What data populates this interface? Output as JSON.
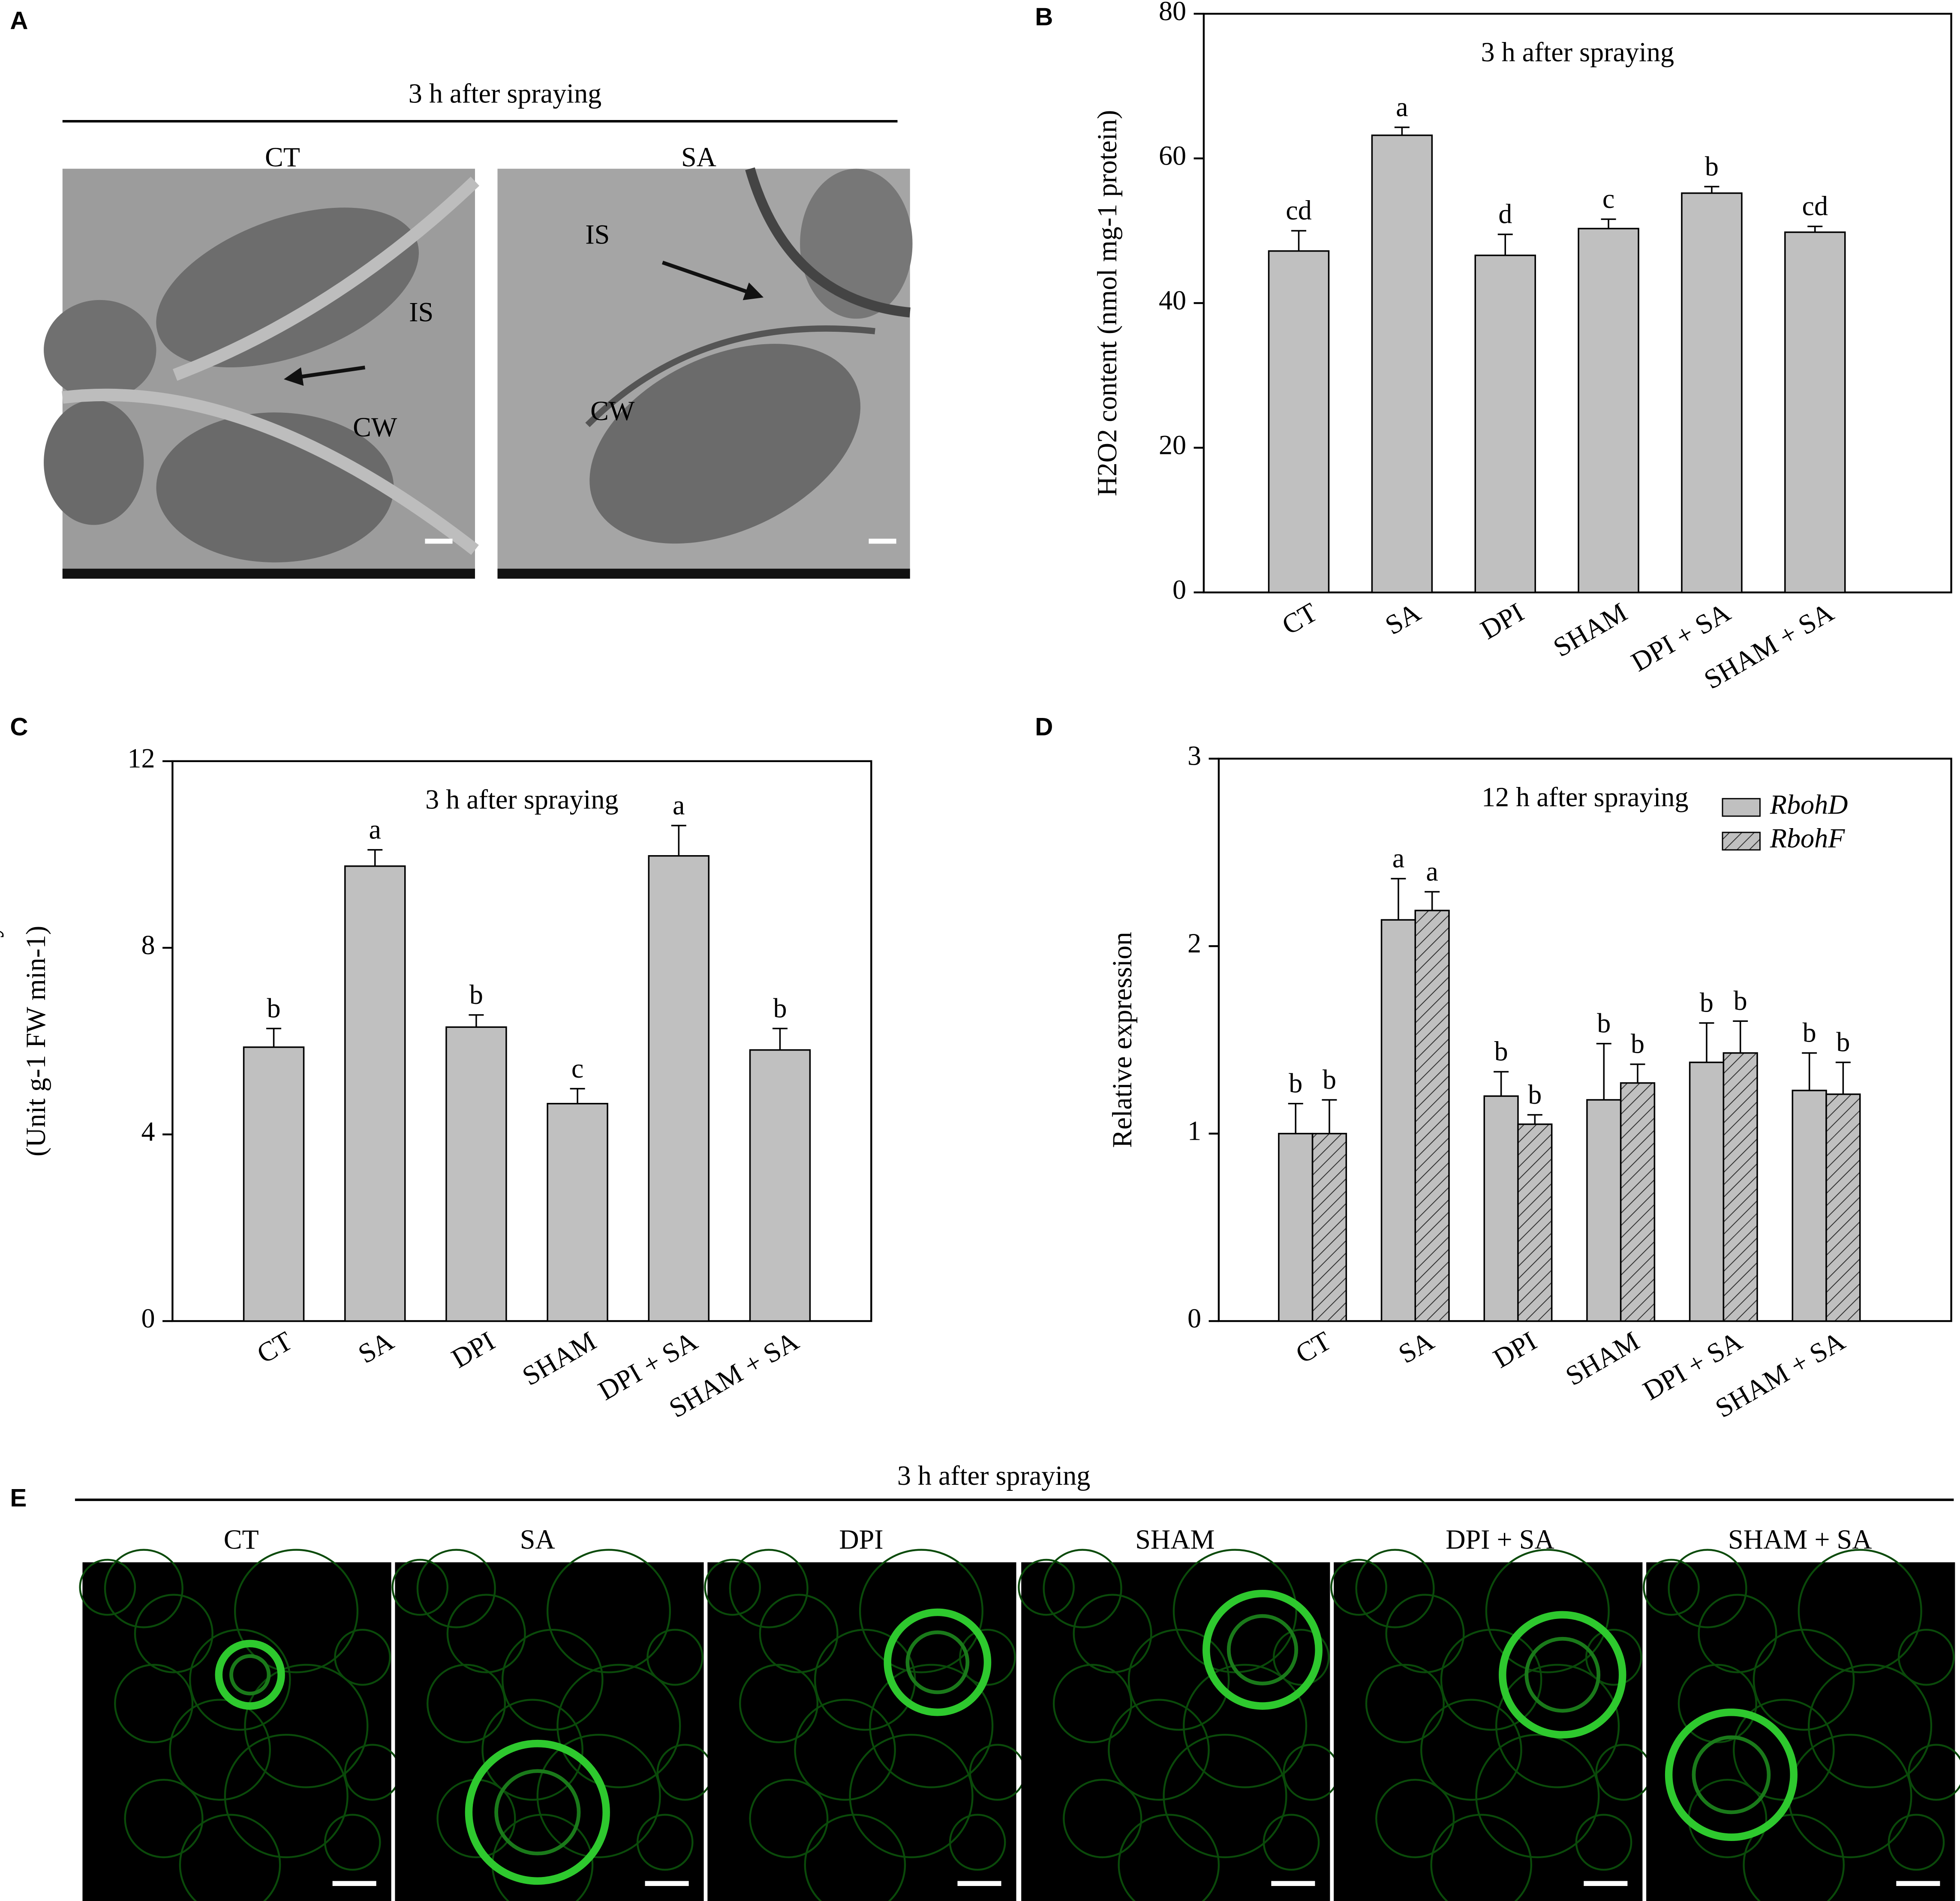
{
  "panel_labels": [
    "A",
    "B",
    "C",
    "D",
    "E"
  ],
  "panel_a": {
    "title": "3 h after spraying",
    "images": [
      {
        "label": "CT",
        "annotations": [
          "IS",
          "CW"
        ]
      },
      {
        "label": "SA",
        "annotations": [
          "IS",
          "CW"
        ]
      }
    ]
  },
  "chart_data": [
    {
      "type": "bar",
      "title": "3 h after spraying",
      "ylabel": [
        "H2O2 content (nmol mg-1 protein)"
      ],
      "categories": [
        "CT",
        "SA",
        "DPI",
        "SHAM",
        "DPI + SA",
        "SHAM + SA"
      ],
      "values": [
        47.2,
        63.2,
        46.6,
        50.3,
        55.2,
        49.8
      ],
      "errors": [
        2.8,
        1.1,
        2.9,
        1.3,
        0.9,
        0.8
      ],
      "letters": [
        "cd",
        "a",
        "d",
        "c",
        "b",
        "cd"
      ],
      "color": "#c0c0c0",
      "ylim": [
        0,
        80
      ],
      "yticks": [
        0,
        20,
        40,
        60,
        80
      ]
    },
    {
      "type": "bar",
      "title": "3 h after spraying",
      "ylabel": [
        "Cell wall Prx activity",
        "(Unit  g-1 FW min-1)"
      ],
      "categories": [
        "CT",
        "SA",
        "DPI",
        "SHAM",
        "DPI + SA",
        "SHAM + SA"
      ],
      "values": [
        5.87,
        9.75,
        6.3,
        4.66,
        9.97,
        5.81
      ],
      "errors": [
        0.4,
        0.35,
        0.26,
        0.32,
        0.65,
        0.46
      ],
      "letters": [
        "b",
        "a",
        "b",
        "c",
        "a",
        "b"
      ],
      "color": "#c0c0c0",
      "ylim": [
        0,
        12
      ],
      "yticks": [
        0,
        4,
        8,
        12
      ]
    },
    {
      "type": "grouped_bar",
      "title": "12 h after spraying",
      "ylabel": [
        "Relative expression"
      ],
      "categories": [
        "CT",
        "SA",
        "DPI",
        "SHAM",
        "DPI + SA",
        "SHAM + SA"
      ],
      "series": [
        {
          "name": "RbohD",
          "color": "#c0c0c0",
          "pattern": "solid",
          "values": [
            1.0,
            2.14,
            1.2,
            1.18,
            1.38,
            1.23
          ],
          "errors": [
            0.16,
            0.22,
            0.13,
            0.3,
            0.21,
            0.2
          ],
          "letters": [
            "b",
            "a",
            "b",
            "b",
            "b",
            "b"
          ]
        },
        {
          "name": "RbohF",
          "color": "#c0c0c0",
          "pattern": "hatch",
          "values": [
            1.0,
            2.19,
            1.05,
            1.27,
            1.43,
            1.21
          ],
          "errors": [
            0.18,
            0.1,
            0.05,
            0.1,
            0.17,
            0.17
          ],
          "letters": [
            "b",
            "a",
            "b",
            "b",
            "b",
            "b"
          ]
        }
      ],
      "legend": "upper right",
      "ylim": [
        0,
        3
      ],
      "yticks": [
        0,
        1,
        2,
        3
      ]
    }
  ],
  "panel_e": {
    "title": "3 h after spraying",
    "images": [
      "CT",
      "SA",
      "DPI",
      "SHAM",
      "DPI + SA",
      "SHAM + SA"
    ]
  }
}
